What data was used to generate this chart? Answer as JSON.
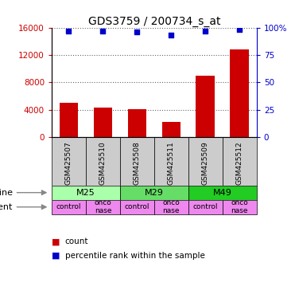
{
  "title": "GDS3759 / 200734_s_at",
  "samples": [
    "GSM425507",
    "GSM425510",
    "GSM425508",
    "GSM425511",
    "GSM425509",
    "GSM425512"
  ],
  "counts": [
    5000,
    4300,
    4100,
    2200,
    9000,
    12800
  ],
  "percentile_ranks": [
    97,
    97,
    96,
    93,
    97,
    98
  ],
  "ylim_left": [
    0,
    16000
  ],
  "ylim_right": [
    0,
    100
  ],
  "yticks_left": [
    0,
    4000,
    8000,
    12000,
    16000
  ],
  "yticks_right": [
    0,
    25,
    50,
    75,
    100
  ],
  "cell_lines": [
    {
      "label": "M25",
      "span": [
        0,
        2
      ],
      "color": "#aaffaa"
    },
    {
      "label": "M29",
      "span": [
        2,
        4
      ],
      "color": "#66dd66"
    },
    {
      "label": "M49",
      "span": [
        4,
        6
      ],
      "color": "#22cc22"
    }
  ],
  "agents": [
    {
      "label": "control",
      "span": [
        0,
        1
      ],
      "color": "#ee88ee"
    },
    {
      "label": "onconase",
      "span": [
        1,
        2
      ],
      "color": "#ee88ee"
    },
    {
      "label": "control",
      "span": [
        2,
        3
      ],
      "color": "#ee88ee"
    },
    {
      "label": "onconase",
      "span": [
        3,
        4
      ],
      "color": "#ee88ee"
    },
    {
      "label": "control",
      "span": [
        4,
        5
      ],
      "color": "#ee88ee"
    },
    {
      "label": "onconase",
      "span": [
        5,
        6
      ],
      "color": "#ee88ee"
    }
  ],
  "bar_color": "#cc0000",
  "dot_color": "#0000cc",
  "sample_bg_color": "#cccccc",
  "legend_count_color": "#cc0000",
  "legend_pct_color": "#0000cc",
  "left_axis_color": "#cc0000",
  "right_axis_color": "#0000cc",
  "title_fontsize": 10,
  "label_fontsize": 8,
  "tick_fontsize": 7.5,
  "sample_fontsize": 6.5,
  "annotation_fontsize": 8
}
